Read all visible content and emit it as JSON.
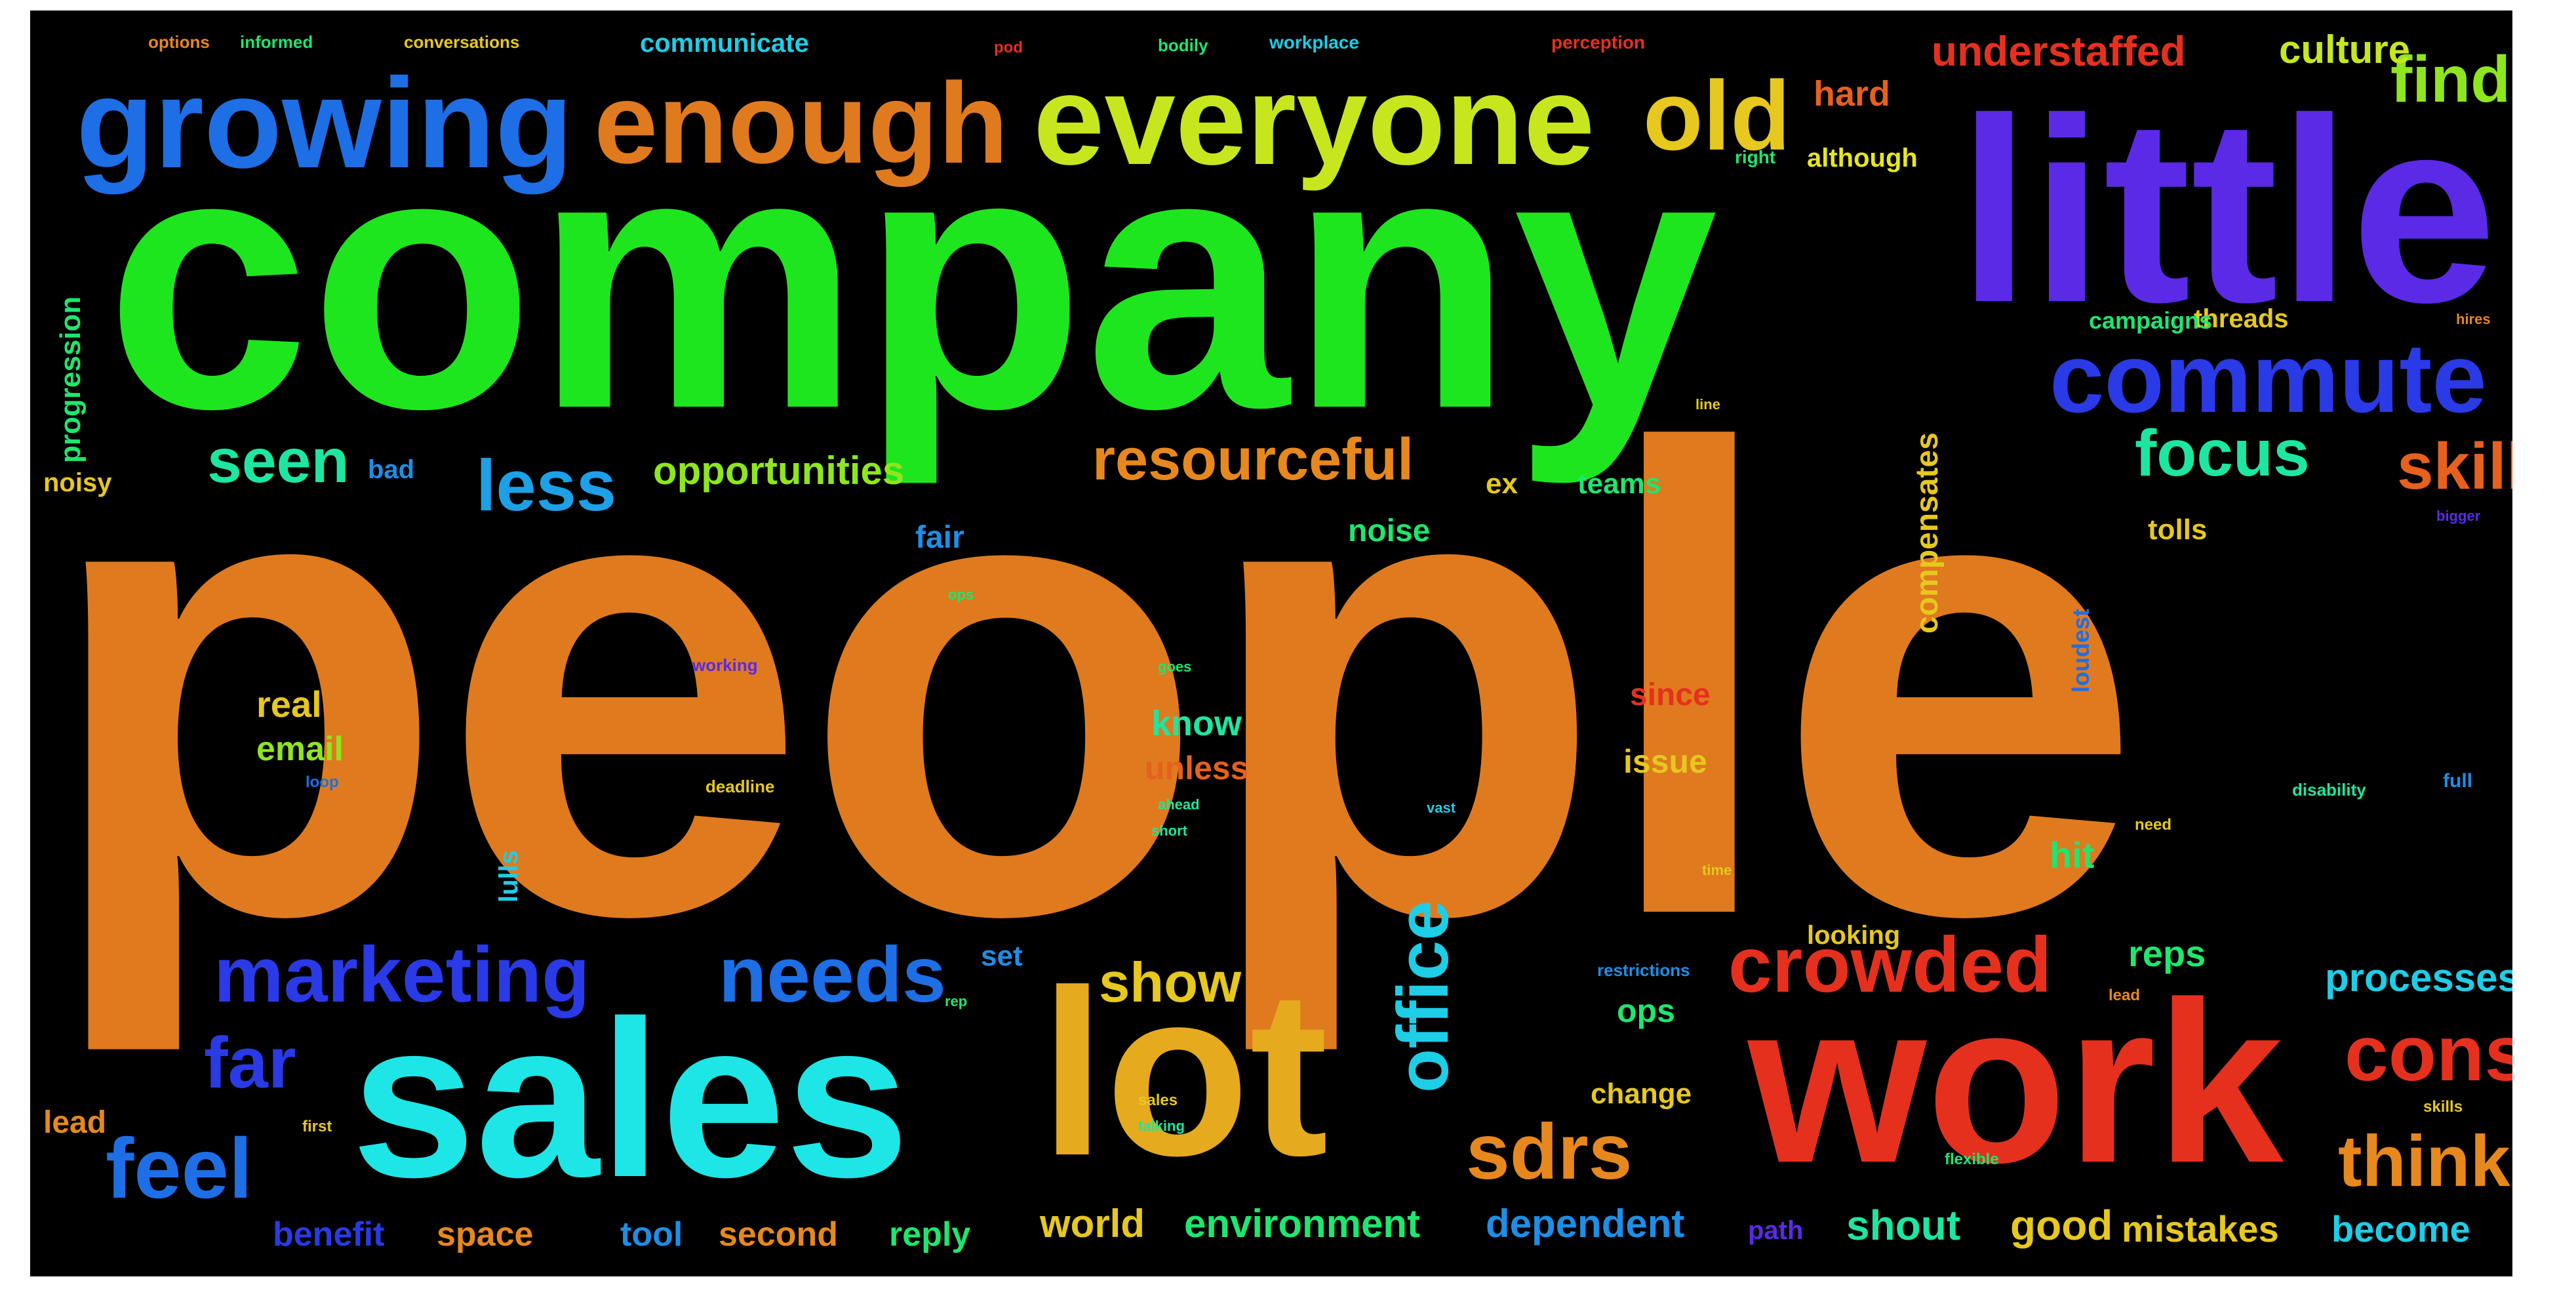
{
  "background": "#000000",
  "words": [
    {
      "text": "people",
      "color": "#e07a1e"
    },
    {
      "text": "company",
      "color": "#1ee61e"
    },
    {
      "text": "little",
      "color": "#5a2ae6"
    },
    {
      "text": "work",
      "color": "#e6301e"
    },
    {
      "text": "sales",
      "color": "#1ee6e6"
    },
    {
      "text": "lot",
      "color": "#e6aa1e"
    },
    {
      "text": "everyone",
      "color": "#c8e61e"
    },
    {
      "text": "growing",
      "color": "#1e6ee6"
    },
    {
      "text": "enough",
      "color": "#e07a1e"
    },
    {
      "text": "old",
      "color": "#e6c81e"
    },
    {
      "text": "commute",
      "color": "#2a3ae6"
    },
    {
      "text": "marketing",
      "color": "#2a3ae6"
    },
    {
      "text": "needs",
      "color": "#1e6ee6"
    },
    {
      "text": "crowded",
      "color": "#e6301e"
    },
    {
      "text": "office",
      "color": "#1ecde6"
    },
    {
      "text": "feel",
      "color": "#1e6ee6"
    },
    {
      "text": "cons",
      "color": "#e6301e"
    },
    {
      "text": "think",
      "color": "#e6881e"
    },
    {
      "text": "sdrs",
      "color": "#e6881e"
    },
    {
      "text": "resourceful",
      "color": "#e6881e"
    },
    {
      "text": "focus",
      "color": "#1ee6a0"
    },
    {
      "text": "skill",
      "color": "#e6601e"
    },
    {
      "text": "find",
      "color": "#8ee61e"
    },
    {
      "text": "less",
      "color": "#1ea0e6"
    },
    {
      "text": "seen",
      "color": "#1ee6a0"
    },
    {
      "text": "far",
      "color": "#2a3ae6"
    },
    {
      "text": "show",
      "color": "#e6c81e"
    },
    {
      "text": "understaffed",
      "color": "#e6301e"
    },
    {
      "text": "culture",
      "color": "#c8e61e"
    },
    {
      "text": "hard",
      "color": "#e6601e"
    },
    {
      "text": "opportunities",
      "color": "#8ee61e"
    },
    {
      "text": "processes",
      "color": "#1ecde6"
    },
    {
      "text": "environment",
      "color": "#1ee66e"
    },
    {
      "text": "dependent",
      "color": "#1e8ee6"
    },
    {
      "text": "good",
      "color": "#e6c81e"
    },
    {
      "text": "mistakes",
      "color": "#e6c81e"
    },
    {
      "text": "shout",
      "color": "#1ee6a0"
    },
    {
      "text": "world",
      "color": "#e6c81e"
    },
    {
      "text": "become",
      "color": "#1ecde6"
    },
    {
      "text": "benefit",
      "color": "#2a3ae6"
    },
    {
      "text": "space",
      "color": "#e6881e"
    },
    {
      "text": "tool",
      "color": "#1e8ee6"
    },
    {
      "text": "second",
      "color": "#e6881e"
    },
    {
      "text": "reply",
      "color": "#1ee66e"
    },
    {
      "text": "lead",
      "color": "#e6881e"
    },
    {
      "text": "reps",
      "color": "#1ee66e"
    },
    {
      "text": "ops",
      "color": "#1ee66e"
    },
    {
      "text": "change",
      "color": "#e6c81e"
    },
    {
      "text": "hit",
      "color": "#1ee66e"
    },
    {
      "text": "issue",
      "color": "#e6c81e"
    },
    {
      "text": "since",
      "color": "#e6301e"
    },
    {
      "text": "know",
      "color": "#1ee6a0"
    },
    {
      "text": "unless",
      "color": "#e6601e"
    },
    {
      "text": "real",
      "color": "#e6c81e"
    },
    {
      "text": "email",
      "color": "#8ee61e"
    },
    {
      "text": "fair",
      "color": "#1e8ee6"
    },
    {
      "text": "noise",
      "color": "#1ee66e"
    },
    {
      "text": "teams",
      "color": "#1ee66e"
    },
    {
      "text": "ex",
      "color": "#e6c81e"
    },
    {
      "text": "tolls",
      "color": "#e6c81e"
    },
    {
      "text": "threads",
      "color": "#e6c81e"
    },
    {
      "text": "campaigns",
      "color": "#1ee66e"
    },
    {
      "text": "compensates",
      "color": "#e6c81e"
    },
    {
      "text": "progression",
      "color": "#1ee66e"
    },
    {
      "text": "noisy",
      "color": "#e6c81e"
    },
    {
      "text": "bad",
      "color": "#1e8ee6"
    },
    {
      "text": "although",
      "color": "#e6e61e"
    },
    {
      "text": "communicate",
      "color": "#1ecde6"
    },
    {
      "text": "looking",
      "color": "#e6c81e"
    },
    {
      "text": "full",
      "color": "#1e8ee6"
    },
    {
      "text": "lulls",
      "color": "#1ecde6"
    },
    {
      "text": "set",
      "color": "#1e8ee6"
    },
    {
      "text": "path",
      "color": "#5a2ae6"
    },
    {
      "text": "loudest",
      "color": "#1e6ee6"
    },
    {
      "text": "workplace",
      "color": "#1ecde6"
    },
    {
      "text": "perception",
      "color": "#e6301e"
    },
    {
      "text": "bodily",
      "color": "#1ee66e"
    },
    {
      "text": "right",
      "color": "#1ee66e"
    },
    {
      "text": "options",
      "color": "#e6881e"
    },
    {
      "text": "informed",
      "color": "#1ee66e"
    },
    {
      "text": "conversations",
      "color": "#e6c81e"
    },
    {
      "text": "flexible",
      "color": "#1ee66e"
    },
    {
      "text": "working",
      "color": "#5a2ae6"
    },
    {
      "text": "restrictions",
      "color": "#1e8ee6"
    },
    {
      "text": "deadline",
      "color": "#e6c81e"
    },
    {
      "text": "goes",
      "color": "#1ee66e"
    },
    {
      "text": "ahead",
      "color": "#1ee6a0"
    },
    {
      "text": "disability",
      "color": "#1ee6a0"
    },
    {
      "text": "lead",
      "color": "#e6881e"
    },
    {
      "text": "skills",
      "color": "#e6c81e"
    },
    {
      "text": "good",
      "color": "#e6c81e"
    },
    {
      "text": "bigger",
      "color": "#5a2ae6"
    },
    {
      "text": "loop",
      "color": "#1e6ee6"
    },
    {
      "text": "short",
      "color": "#1ee6a0"
    },
    {
      "text": "need",
      "color": "#e6c81e"
    },
    {
      "text": "pod",
      "color": "#e6301e"
    },
    {
      "text": "rep",
      "color": "#1ee66e"
    },
    {
      "text": "sales",
      "color": "#e6c81e"
    },
    {
      "text": "first",
      "color": "#e6c81e"
    },
    {
      "text": "line",
      "color": "#e6c81e"
    },
    {
      "text": "vast",
      "color": "#1ecde6"
    },
    {
      "text": "ops",
      "color": "#1ee66e"
    },
    {
      "text": "talking",
      "color": "#1ee6a0"
    },
    {
      "text": "hires",
      "color": "#e6881e"
    },
    {
      "text": "time",
      "color": "#e6c81e"
    }
  ]
}
